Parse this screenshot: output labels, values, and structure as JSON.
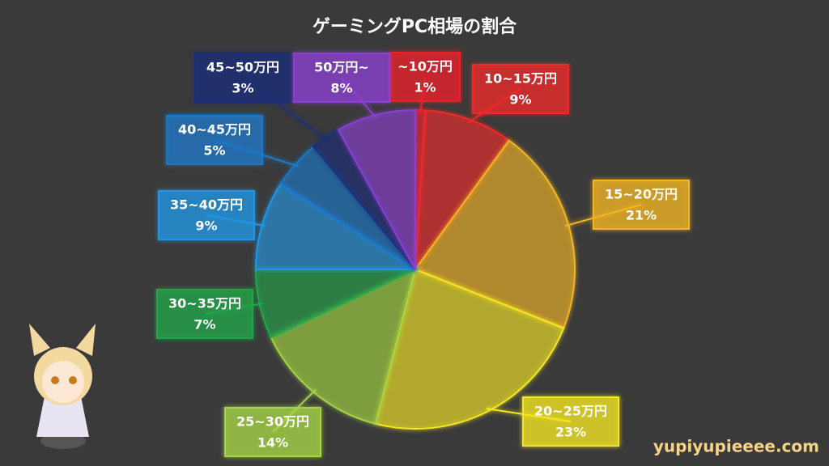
{
  "chart_data": {
    "type": "pie",
    "title": "ゲーミングPC相場の割合",
    "categories": [
      "~10万円",
      "10~15万円",
      "15~20万円",
      "20~25万円",
      "25~30万円",
      "30~35万円",
      "35~40万円",
      "40~45万円",
      "45~50万円",
      "50万円~"
    ],
    "values": [
      1,
      9,
      21,
      23,
      14,
      7,
      9,
      5,
      3,
      8
    ],
    "value_labels": [
      "1%",
      "9%",
      "21%",
      "23%",
      "14%",
      "7%",
      "9%",
      "5%",
      "3%",
      "8%"
    ],
    "colors": [
      "#e8222a",
      "#ee2a2a",
      "#f2b526",
      "#f4e622",
      "#a6d444",
      "#22a64a",
      "#2296e2",
      "#1f78c8",
      "#1c2e78",
      "#8a3fd0"
    ]
  },
  "watermark": "yupiyupieeee.com"
}
